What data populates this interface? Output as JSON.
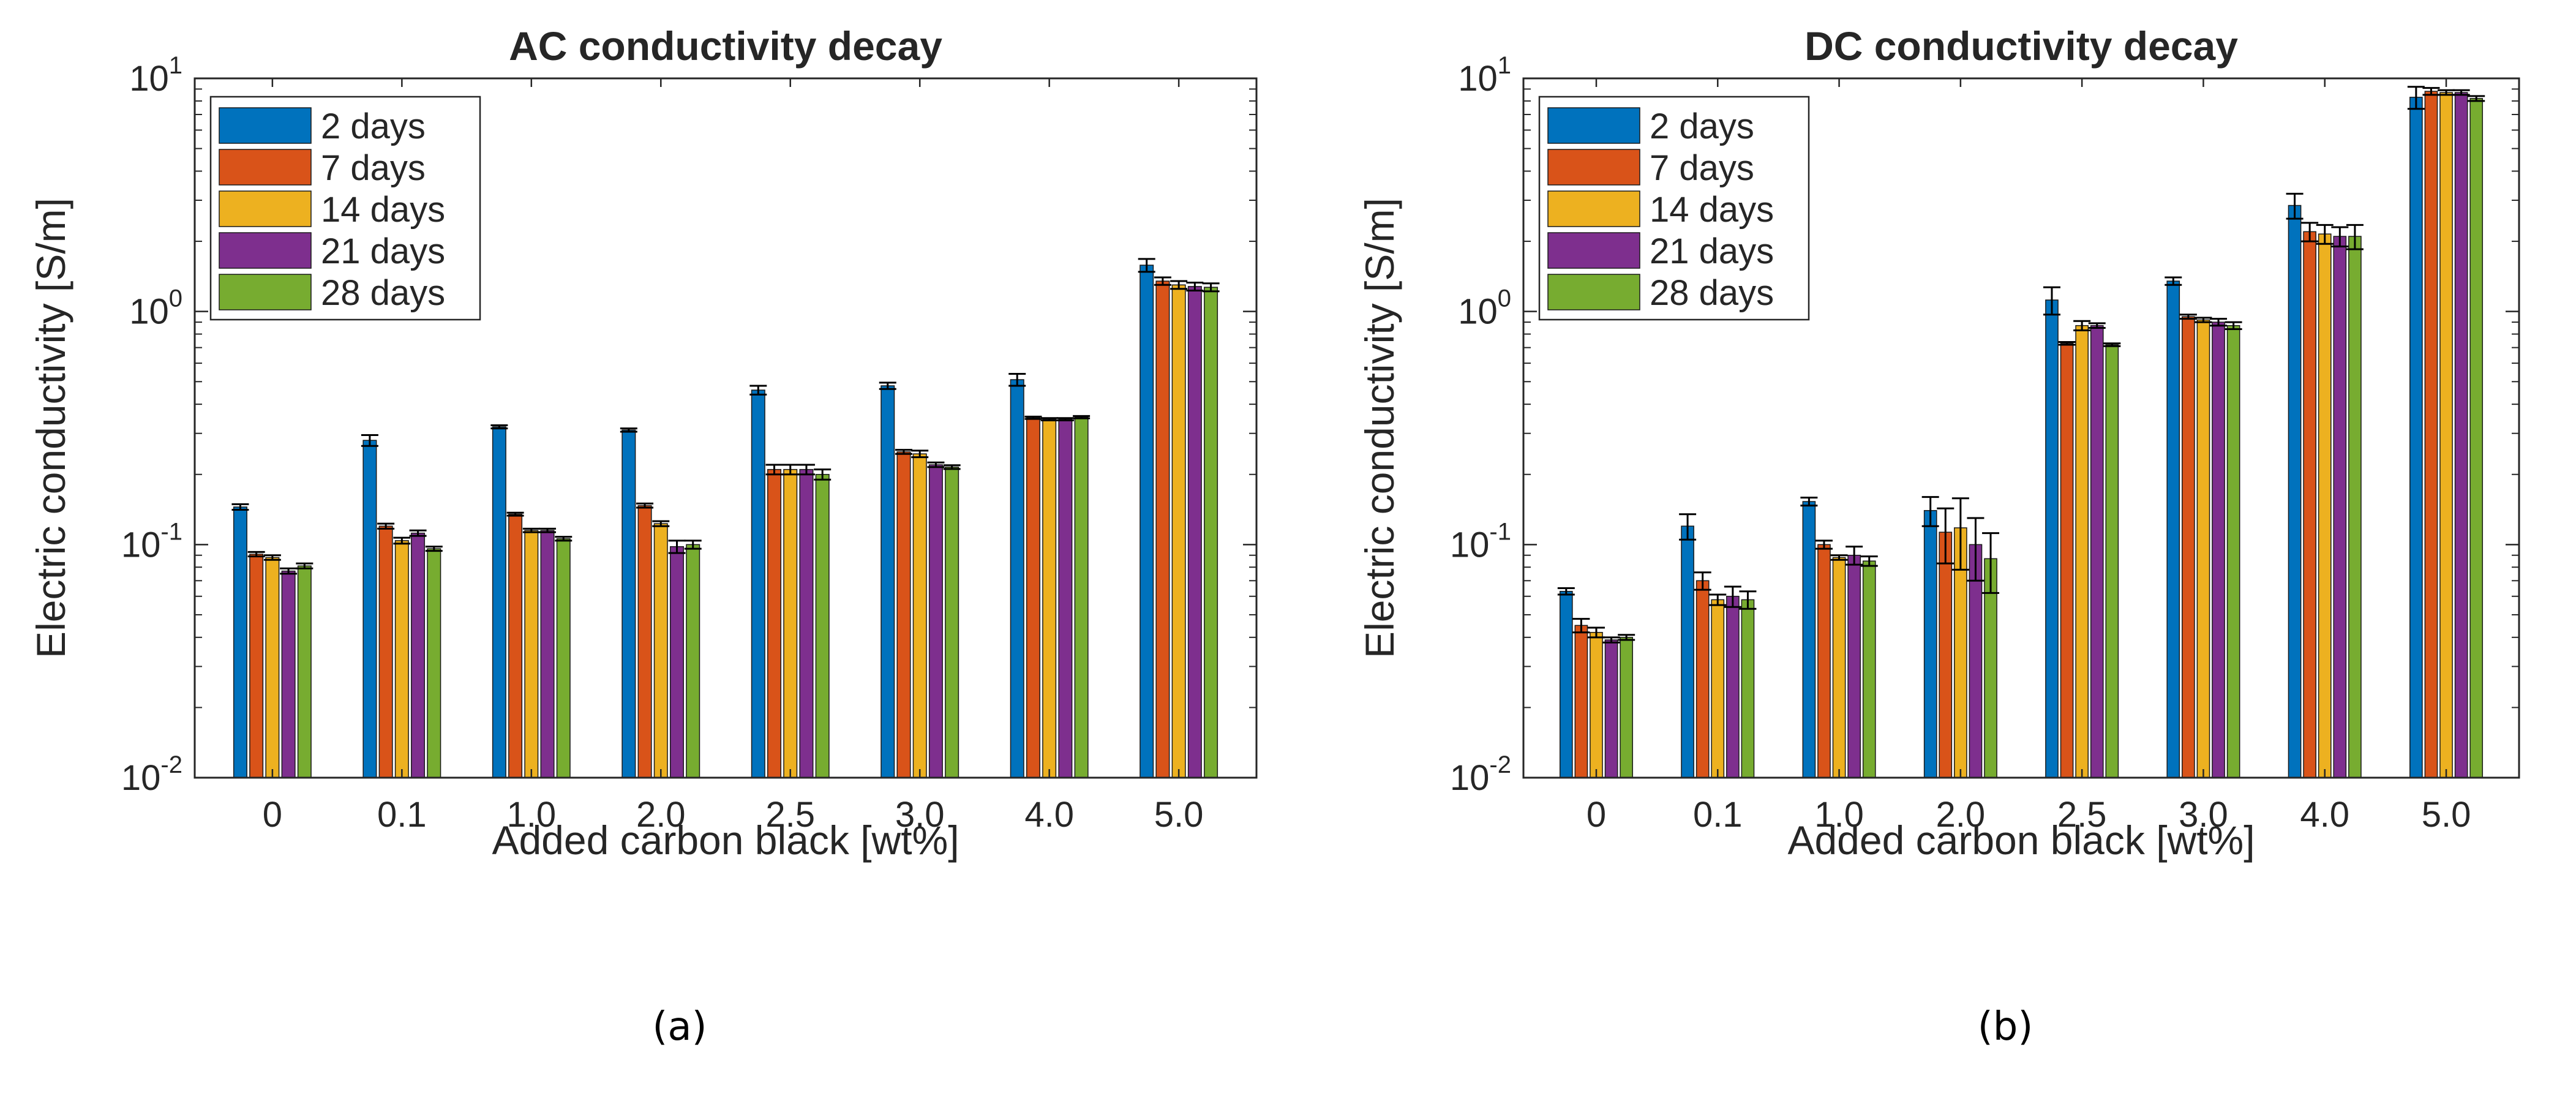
{
  "colors": {
    "2 days": "#0072BD",
    "7 days": "#D95319",
    "14 days": "#EDB120",
    "21 days": "#7E2F8E",
    "28 days": "#77AC30",
    "axis": "#262626"
  },
  "chart_data": [
    {
      "type": "bar",
      "panel_label": "(a)",
      "title": "AC conductivity decay",
      "xlabel": "Added carbon black [wt%]",
      "ylabel": "Electric conductivity [S/m]",
      "yscale": "log",
      "ylim": [
        0.01,
        10
      ],
      "yticks": [
        {
          "value": 0.01,
          "base": "10",
          "exp": "-2"
        },
        {
          "value": 0.1,
          "base": "10",
          "exp": "-1"
        },
        {
          "value": 1,
          "base": "10",
          "exp": "0"
        },
        {
          "value": 10,
          "base": "10",
          "exp": "1"
        }
      ],
      "legend_position": "top-left",
      "categories": [
        "0",
        "0.1",
        "1.0",
        "2.0",
        "2.5",
        "3.0",
        "4.0",
        "5.0"
      ],
      "series": [
        {
          "name": "2 days",
          "values": [
            0.145,
            0.28,
            0.32,
            0.31,
            0.46,
            0.48,
            0.51,
            1.58
          ],
          "errors": [
            0.004,
            0.015,
            0.005,
            0.005,
            0.02,
            0.015,
            0.03,
            0.1
          ]
        },
        {
          "name": "7 days",
          "values": [
            0.091,
            0.12,
            0.135,
            0.147,
            0.21,
            0.25,
            0.35,
            1.35
          ],
          "errors": [
            0.002,
            0.003,
            0.002,
            0.003,
            0.01,
            0.005,
            0.004,
            0.05
          ]
        },
        {
          "name": "14 days",
          "values": [
            0.088,
            0.104,
            0.115,
            0.123,
            0.21,
            0.245,
            0.345,
            1.3
          ],
          "errors": [
            0.002,
            0.003,
            0.002,
            0.003,
            0.01,
            0.008,
            0.004,
            0.05
          ]
        },
        {
          "name": "21 days",
          "values": [
            0.077,
            0.112,
            0.115,
            0.098,
            0.21,
            0.22,
            0.345,
            1.28
          ],
          "errors": [
            0.002,
            0.003,
            0.002,
            0.006,
            0.01,
            0.005,
            0.004,
            0.05
          ]
        },
        {
          "name": "28 days",
          "values": [
            0.081,
            0.096,
            0.106,
            0.1,
            0.2,
            0.215,
            0.352,
            1.27
          ],
          "errors": [
            0.002,
            0.002,
            0.002,
            0.004,
            0.01,
            0.004,
            0.004,
            0.05
          ]
        }
      ]
    },
    {
      "type": "bar",
      "panel_label": "(b)",
      "title": "DC conductivity decay",
      "xlabel": "Added carbon black [wt%]",
      "ylabel": "Electric conductivity [S/m]",
      "yscale": "log",
      "ylim": [
        0.01,
        10
      ],
      "yticks": [
        {
          "value": 0.01,
          "base": "10",
          "exp": "-2"
        },
        {
          "value": 0.1,
          "base": "10",
          "exp": "-1"
        },
        {
          "value": 1,
          "base": "10",
          "exp": "0"
        },
        {
          "value": 10,
          "base": "10",
          "exp": "1"
        }
      ],
      "legend_position": "top-left",
      "categories": [
        "0",
        "0.1",
        "1.0",
        "2.0",
        "2.5",
        "3.0",
        "4.0",
        "5.0"
      ],
      "series": [
        {
          "name": "2 days",
          "values": [
            0.063,
            0.12,
            0.153,
            0.14,
            1.12,
            1.35,
            2.85,
            8.3
          ],
          "errors": [
            0.002,
            0.015,
            0.006,
            0.02,
            0.15,
            0.05,
            0.35,
            0.9
          ]
        },
        {
          "name": "7 days",
          "values": [
            0.045,
            0.07,
            0.1,
            0.113,
            0.73,
            0.95,
            2.2,
            8.8
          ],
          "errors": [
            0.003,
            0.006,
            0.004,
            0.03,
            0.01,
            0.02,
            0.2,
            0.3
          ]
        },
        {
          "name": "14 days",
          "values": [
            0.042,
            0.058,
            0.088,
            0.118,
            0.87,
            0.92,
            2.15,
            8.7
          ],
          "errors": [
            0.002,
            0.003,
            0.002,
            0.04,
            0.04,
            0.02,
            0.2,
            0.2
          ]
        },
        {
          "name": "21 days",
          "values": [
            0.039,
            0.06,
            0.09,
            0.1,
            0.87,
            0.9,
            2.1,
            8.7
          ],
          "errors": [
            0.001,
            0.006,
            0.008,
            0.03,
            0.02,
            0.03,
            0.2,
            0.2
          ]
        },
        {
          "name": "28 days",
          "values": [
            0.04,
            0.058,
            0.085,
            0.087,
            0.72,
            0.87,
            2.1,
            8.2
          ],
          "errors": [
            0.001,
            0.005,
            0.004,
            0.025,
            0.01,
            0.03,
            0.25,
            0.2
          ]
        }
      ]
    }
  ]
}
